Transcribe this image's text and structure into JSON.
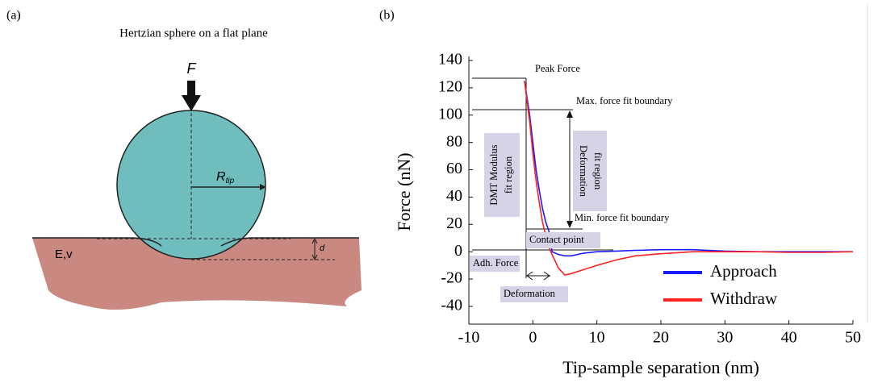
{
  "panel_a": {
    "label": "(a)",
    "title": "Hertzian sphere on a flat plane",
    "force_label": "F",
    "radius_label": "R",
    "radius_subscript": "tip",
    "material_label": "E,v",
    "depth_label": "d"
  },
  "chart_data": {
    "type": "line",
    "panel_label": "(b)",
    "xlabel": "Tip-sample separation (nm)",
    "ylabel": "Force (nN)",
    "xlim": [
      -10,
      50
    ],
    "ylim": [
      -53,
      140
    ],
    "xticks": [
      -10,
      0,
      10,
      20,
      30,
      40,
      50
    ],
    "yticks": [
      -40,
      -20,
      0,
      20,
      40,
      60,
      80,
      100,
      120,
      140
    ],
    "x": [
      -1.3,
      -0.5,
      0,
      0.5,
      1,
      1.5,
      2,
      2.5,
      3,
      4,
      5,
      6,
      8,
      10,
      13,
      16,
      20,
      25,
      30,
      35,
      40,
      45,
      50
    ],
    "series": [
      {
        "name": "Approach",
        "color": "#1a1aff",
        "values": [
          125,
          100,
          80,
          60,
          45,
          32,
          22,
          15,
          0,
          -2,
          -3,
          -3,
          -1,
          0,
          0.5,
          1,
          1.5,
          1.5,
          0.5,
          0,
          0,
          0,
          0
        ]
      },
      {
        "name": "Withdraw",
        "color": "#ff2020",
        "values": [
          125,
          95,
          72,
          52,
          36,
          22,
          12,
          3,
          -2,
          -12,
          -17,
          -16,
          -13,
          -10,
          -6,
          -3,
          -1.5,
          0,
          0,
          0,
          -0.5,
          -0.5,
          0
        ]
      }
    ],
    "legend": "lower right",
    "annotations": [
      "Peak Force",
      "Max. force fit boundary",
      "Min. force fit boundary",
      "Contact point",
      "Adh. Force",
      "Deformation",
      "DMT Modulus",
      "fit region",
      "Deformation",
      "fit region"
    ]
  }
}
